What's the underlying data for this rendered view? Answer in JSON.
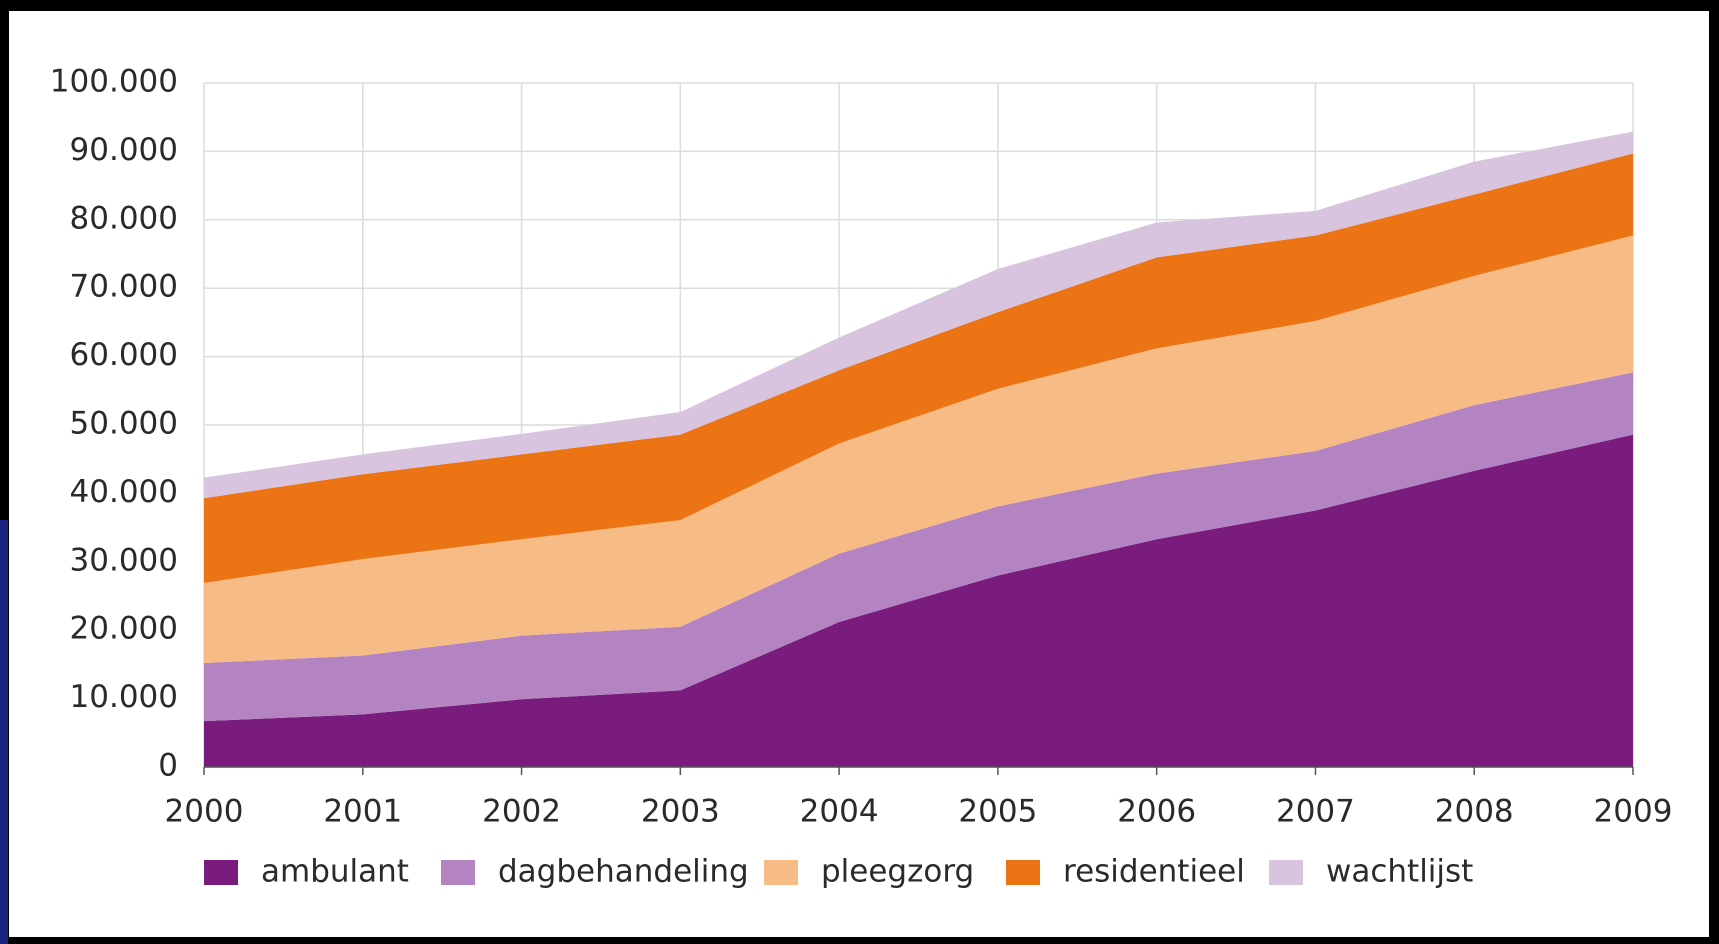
{
  "chart_data": {
    "type": "stacked_area",
    "x": [
      2000,
      2001,
      2002,
      2003,
      2004,
      2005,
      2006,
      2007,
      2008,
      2009
    ],
    "xlim": [
      2000,
      2009
    ],
    "xticks": [
      2000,
      2001,
      2002,
      2003,
      2004,
      2005,
      2006,
      2007,
      2008,
      2009
    ],
    "ylim": [
      0,
      100000
    ],
    "yticks": [
      0,
      {
        "value": 10000,
        "label": "10.000"
      },
      {
        "value": 20000,
        "label": "20.000"
      },
      {
        "value": 30000,
        "label": "30.000"
      },
      {
        "value": 40000,
        "label": "40.000"
      },
      {
        "value": 50000,
        "label": "50.000"
      },
      {
        "value": 60000,
        "label": "60.000"
      },
      {
        "value": 70000,
        "label": "70.000"
      },
      {
        "value": 80000,
        "label": "80.000"
      },
      {
        "value": 90000,
        "label": "90.000"
      },
      {
        "value": 100000,
        "label": "100.000"
      }
    ],
    "grid": true,
    "legend": "bottom",
    "series": [
      {
        "name": "ambulant",
        "color": "#7a1c7e",
        "values": [
          6700,
          7700,
          9900,
          11200,
          21200,
          28000,
          33300,
          37500,
          43300,
          48600
        ]
      },
      {
        "name": "dagbehandeling",
        "color": "#b484c2",
        "values": [
          8500,
          8600,
          9300,
          9300,
          10000,
          10100,
          9600,
          8700,
          9600,
          9100
        ]
      },
      {
        "name": "pleegzorg",
        "color": "#f7bc86",
        "values": [
          11700,
          14100,
          14100,
          15600,
          16100,
          17200,
          18300,
          19000,
          18900,
          20000
        ]
      },
      {
        "name": "residentieel",
        "color": "#ec7414",
        "values": [
          12400,
          12400,
          12400,
          12500,
          10700,
          11200,
          13300,
          12500,
          11900,
          12000
        ]
      },
      {
        "name": "wachtlijst",
        "color": "#d8c4df",
        "values": [
          3000,
          2900,
          3000,
          3300,
          4800,
          6300,
          5100,
          3600,
          4800,
          3200
        ]
      }
    ]
  }
}
